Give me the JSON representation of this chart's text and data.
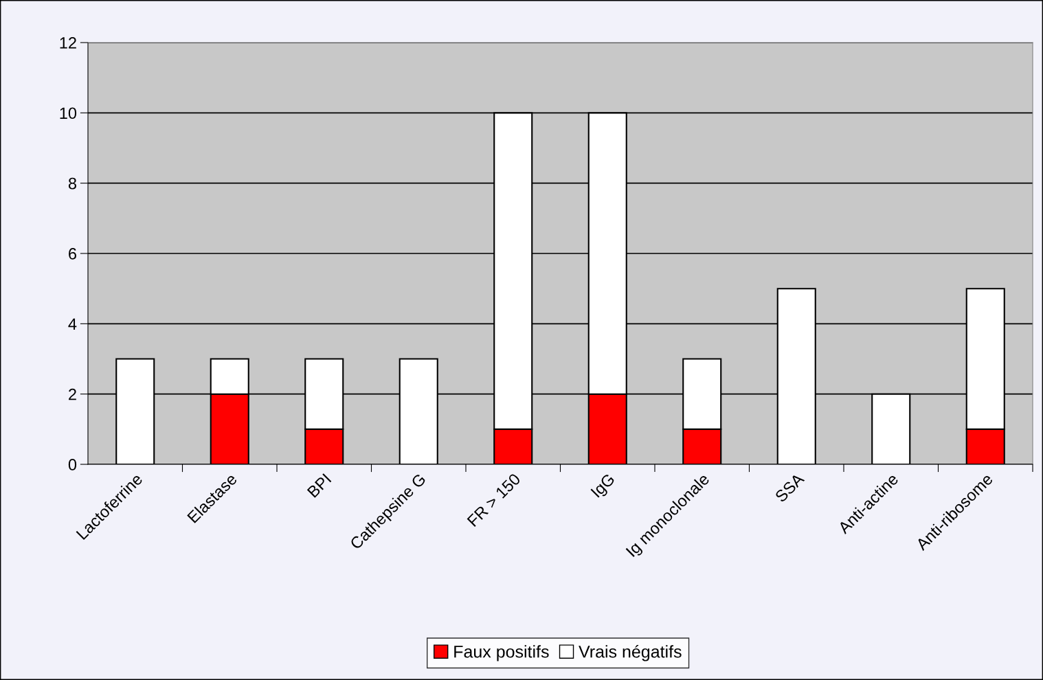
{
  "chart_data": {
    "type": "bar",
    "stacked": true,
    "categories": [
      "Lactoferrine",
      "Elastase",
      "BPI",
      "Cathepsine G",
      "FR > 150",
      "IgG",
      "Ig monoclonale",
      "SSA",
      "Anti-actine",
      "Anti-ribosome"
    ],
    "series": [
      {
        "name": "Faux positifs",
        "color": "#ff0000",
        "values": [
          0,
          2,
          1,
          0,
          1,
          2,
          1,
          0,
          0,
          1
        ]
      },
      {
        "name": "Vrais négatifs",
        "color": "#ffffff",
        "values": [
          3,
          1,
          2,
          3,
          9,
          8,
          2,
          5,
          2,
          4
        ]
      }
    ],
    "ylim": [
      0,
      12
    ],
    "yticks": [
      0,
      2,
      4,
      6,
      8,
      10,
      12
    ],
    "grid": "y",
    "legend": "bottom"
  }
}
